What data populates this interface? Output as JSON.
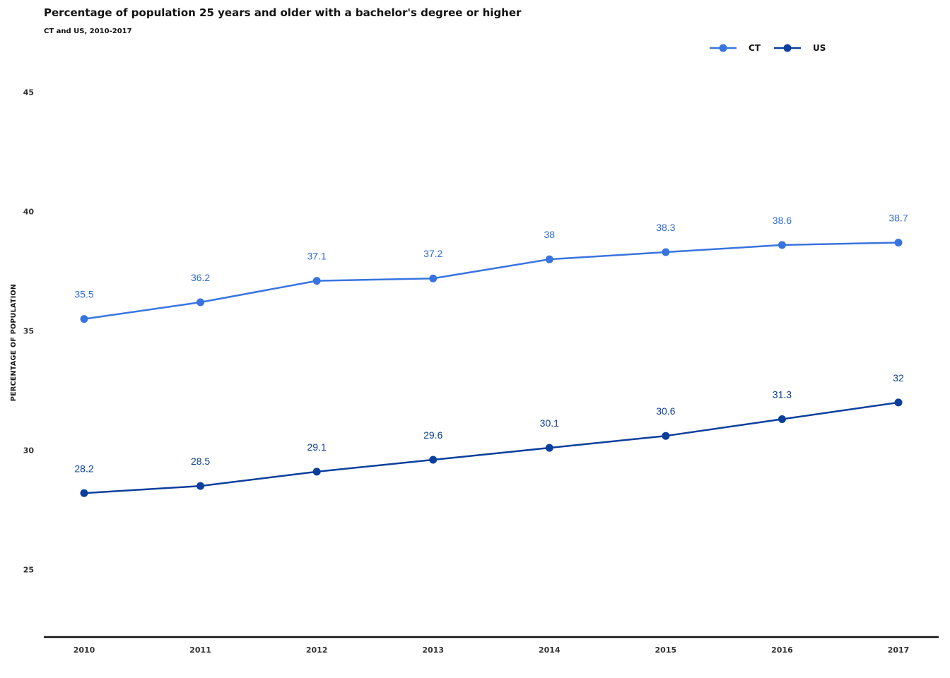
{
  "chart_data": {
    "type": "line",
    "title": "Percentage of population 25 years and older with a bachelor's degree or higher",
    "subtitle": "CT and US, 2010-2017",
    "xlabel": "",
    "ylabel": "PERCENTAGE OF POPULATION",
    "x": [
      "2010",
      "2011",
      "2012",
      "2013",
      "2014",
      "2015",
      "2016",
      "2017"
    ],
    "ylim": [
      22.2,
      46.5
    ],
    "yticks": [
      25,
      30,
      35,
      40,
      45
    ],
    "grid": false,
    "legend": "top-right",
    "series": [
      {
        "name": "CT",
        "color": "#3874e0",
        "label_color": "#2f6bd0",
        "values": [
          35.5,
          36.2,
          37.1,
          37.2,
          38,
          38.3,
          38.6,
          38.7
        ],
        "labels": [
          "35.5",
          "36.2",
          "37.1",
          "37.2",
          "38",
          "38.3",
          "38.6",
          "38.7"
        ]
      },
      {
        "name": "US",
        "color": "#0b3f9c",
        "label_color": "#0b3f9c",
        "values": [
          28.2,
          28.5,
          29.1,
          29.6,
          30.1,
          30.6,
          31.3,
          32
        ],
        "labels": [
          "28.2",
          "28.5",
          "29.1",
          "29.6",
          "30.1",
          "30.6",
          "31.3",
          "32"
        ]
      }
    ]
  }
}
